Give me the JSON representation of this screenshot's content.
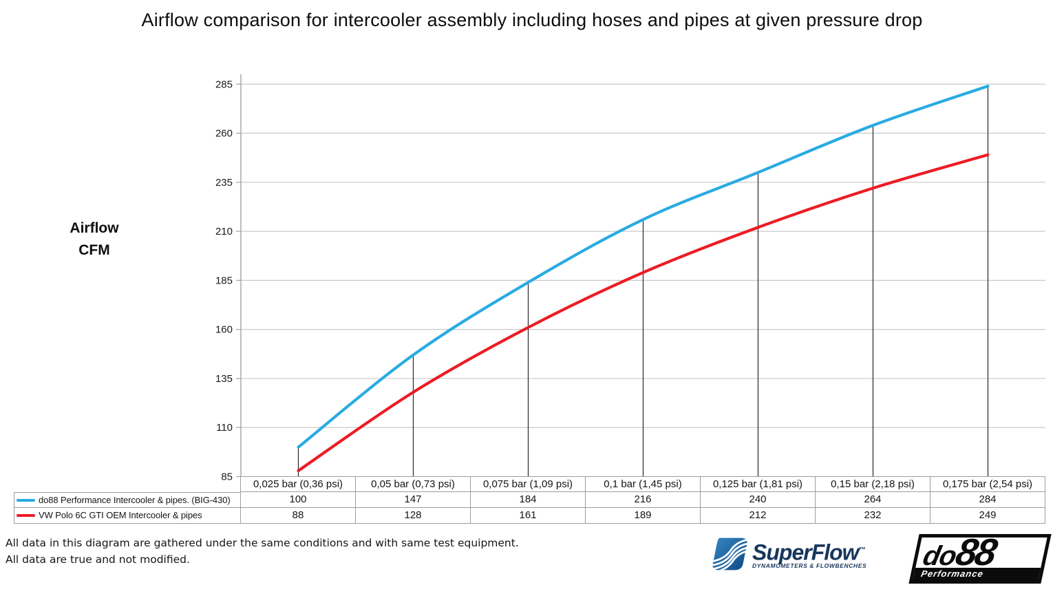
{
  "title": "Airflow comparison for intercooler assembly including hoses and pipes at given pressure drop",
  "y_axis_label": {
    "line1": "Airflow",
    "line2": "CFM"
  },
  "chart_data": {
    "type": "line",
    "title": "Airflow comparison for intercooler assembly including hoses and pipes at given pressure drop",
    "ylabel": "Airflow CFM",
    "xlabel": "",
    "categories": [
      "0,025 bar (0,36 psi)",
      "0,05 bar (0,73 psi)",
      "0,075 bar (1,09 psi)",
      "0,1 bar (1,45 psi)",
      "0,125 bar (1,81 psi)",
      "0,15 bar (2,18 psi)",
      "0,175 bar (2,54 psi)"
    ],
    "series": [
      {
        "name": "do88 Performance Intercooler & pipes. (BIG-430)",
        "color": "#29ABE2",
        "values": [
          100,
          147,
          184,
          216,
          240,
          264,
          284
        ]
      },
      {
        "name": "VW Polo 6C GTI OEM Intercooler & pipes",
        "color": "#EC1C24",
        "values": [
          88,
          128,
          161,
          189,
          212,
          232,
          249
        ]
      }
    ],
    "ylim": [
      85,
      290
    ],
    "yticks": [
      85,
      110,
      135,
      160,
      185,
      210,
      235,
      260,
      285
    ],
    "grid": true,
    "drop_lines": true,
    "legend_position": "data-table-left",
    "smooth_lines": true
  },
  "footer": {
    "line1": "All data in this diagram are gathered under the same conditions and with same test equipment.",
    "line2": "All data are true and not modified."
  },
  "logos": {
    "superflow": {
      "name": "SuperFlow",
      "trademark": "™",
      "tagline": "DYNAMOMETERS & FLOWBENCHES",
      "icon_color_top": "#3787c0",
      "icon_color_bottom": "#0d4a87",
      "text_color": "#16365c"
    },
    "do88": {
      "name_prefix": "do",
      "name_suffix": "88",
      "tagline": "Performance"
    }
  },
  "colors": {
    "grid": "#c9c9c9",
    "axis": "#a3a3a3",
    "drop_line": "#262626",
    "table_border": "#9c9c9c",
    "text": "#1a1a1a"
  }
}
